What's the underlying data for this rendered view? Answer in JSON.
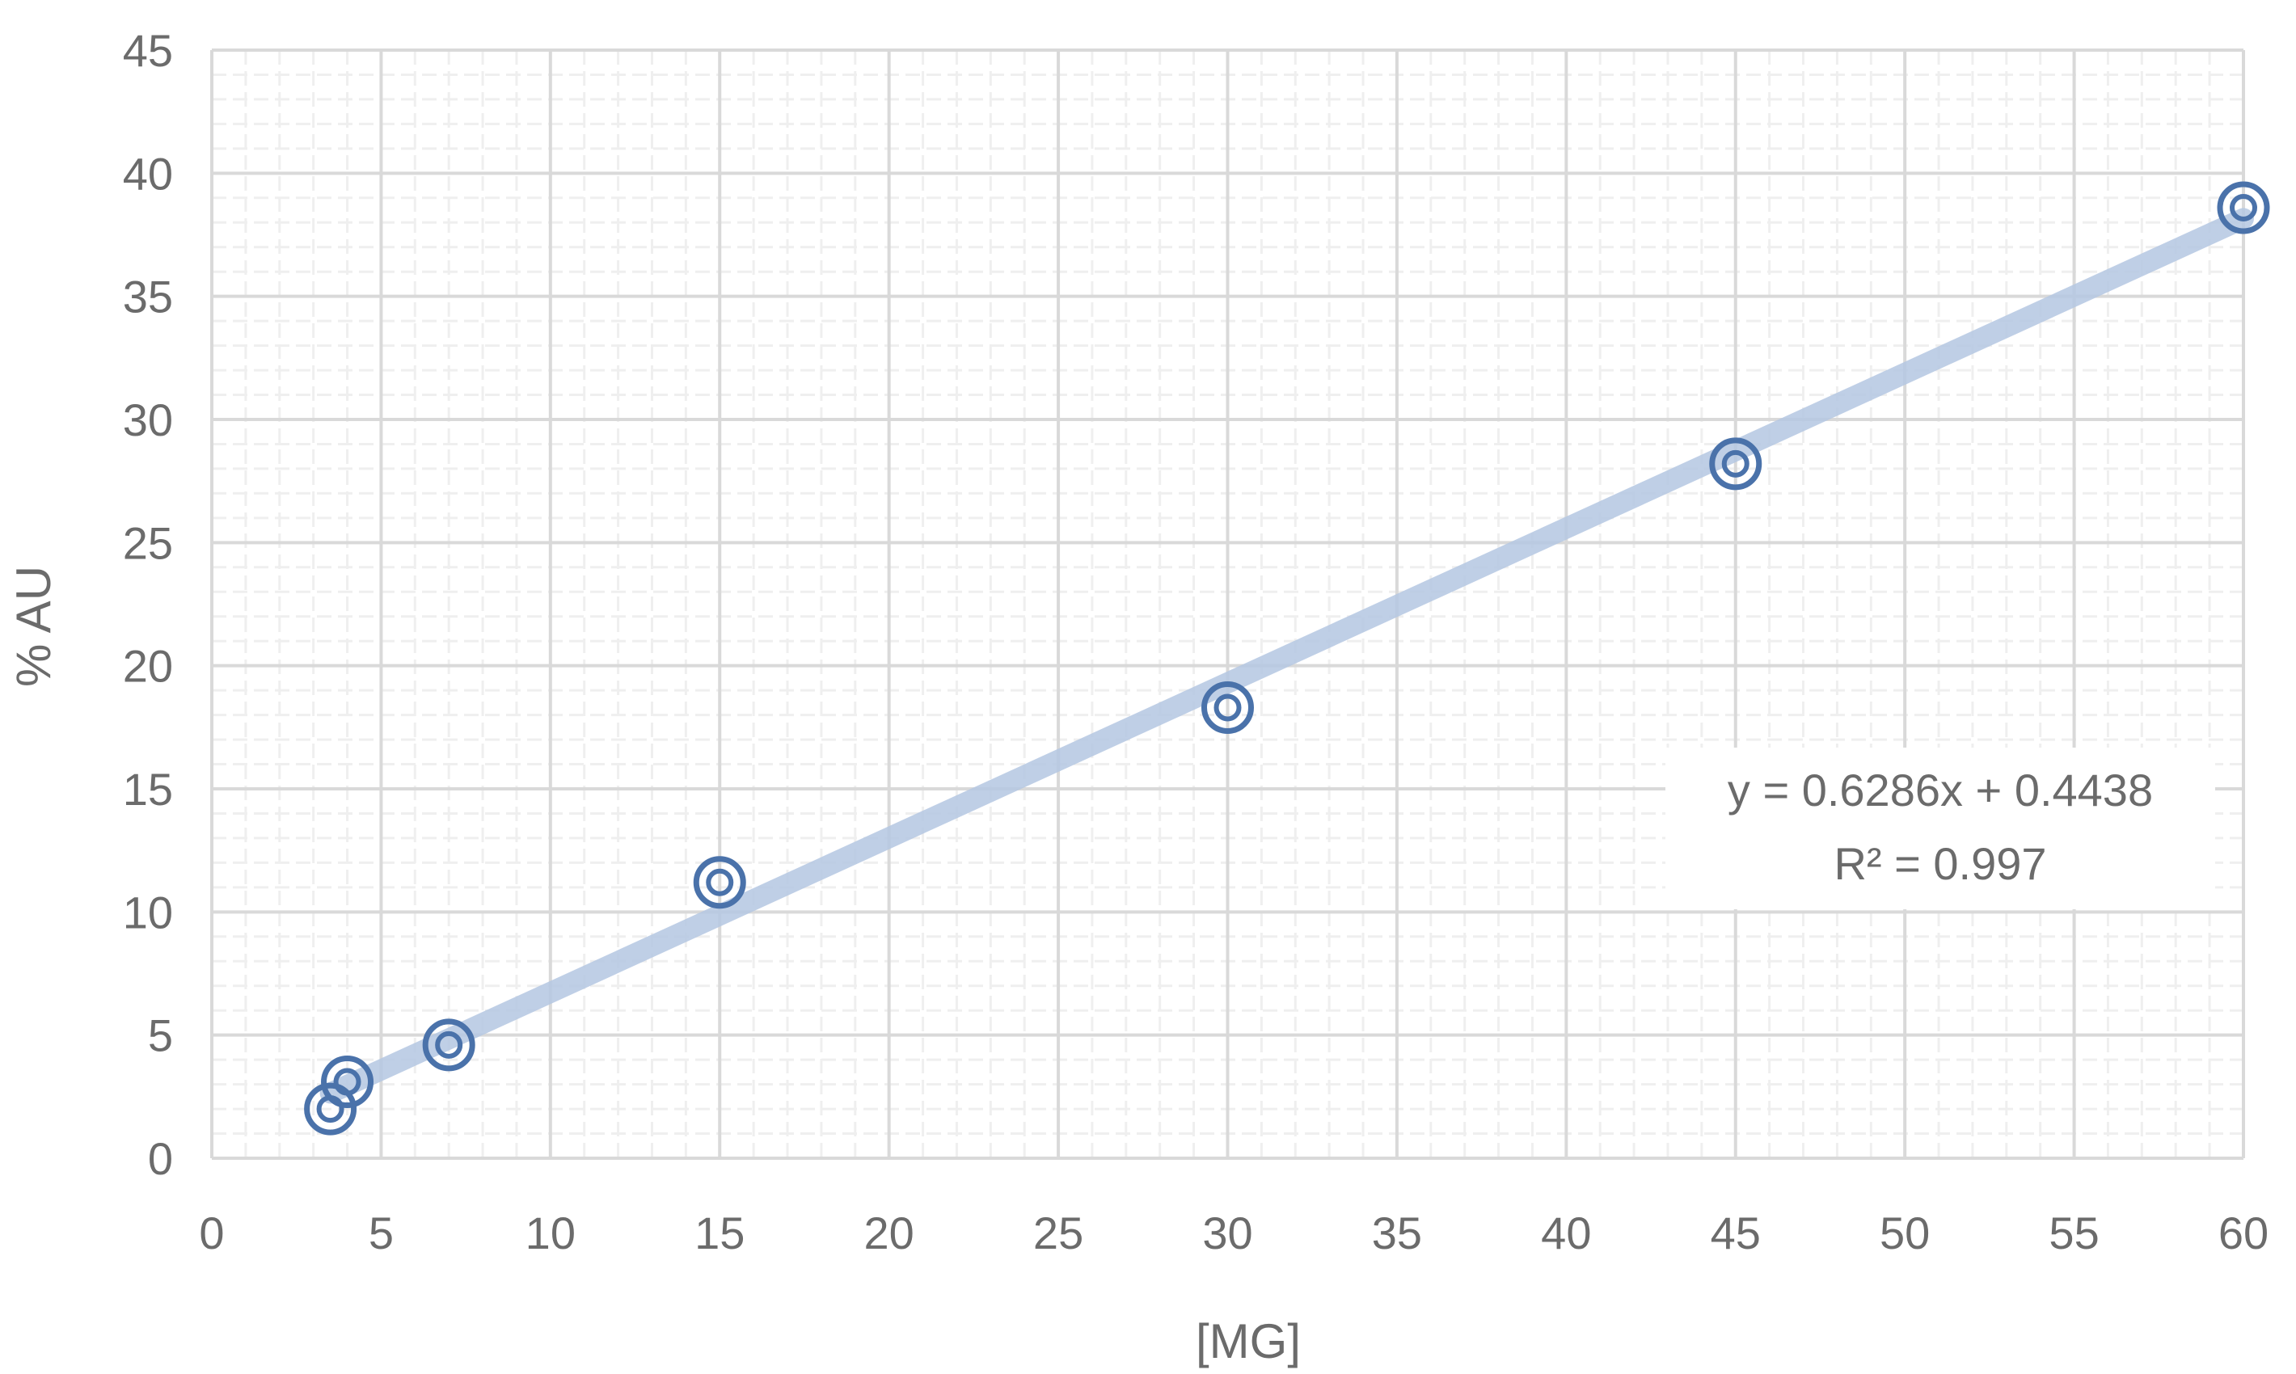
{
  "chart_data": {
    "type": "scatter",
    "title": "",
    "xlabel": "[MG]",
    "ylabel": "% AU",
    "xlim": [
      0,
      60
    ],
    "ylim": [
      0,
      45
    ],
    "x_ticks": [
      0,
      5,
      10,
      15,
      20,
      25,
      30,
      35,
      40,
      45,
      50,
      55,
      60
    ],
    "y_ticks": [
      0,
      5,
      10,
      15,
      20,
      25,
      30,
      35,
      40,
      45
    ],
    "grid": true,
    "legend": "none",
    "series": [
      {
        "points": [
          {
            "x": 3.5,
            "y": 2.0
          },
          {
            "x": 4.0,
            "y": 3.1
          },
          {
            "x": 7.0,
            "y": 4.6
          },
          {
            "x": 15.0,
            "y": 11.2
          },
          {
            "x": 30.0,
            "y": 18.3
          },
          {
            "x": 45.0,
            "y": 28.2
          },
          {
            "x": 60.0,
            "y": 38.6
          }
        ],
        "marker": "double-ring",
        "color": "#4a72aa"
      }
    ],
    "trendline": {
      "type": "linear",
      "slope": 0.6286,
      "intercept": 0.4438,
      "x_range": [
        3.5,
        60
      ],
      "color": "#b4c7e2"
    },
    "annotations": {
      "equation": "y = 0.6286x + 0.4438",
      "r_squared": "R² = 0.997"
    },
    "colors": {
      "major_grid": "#d9d9d9",
      "minor_grid": "#efefef",
      "text": "#6b6b6b"
    }
  }
}
